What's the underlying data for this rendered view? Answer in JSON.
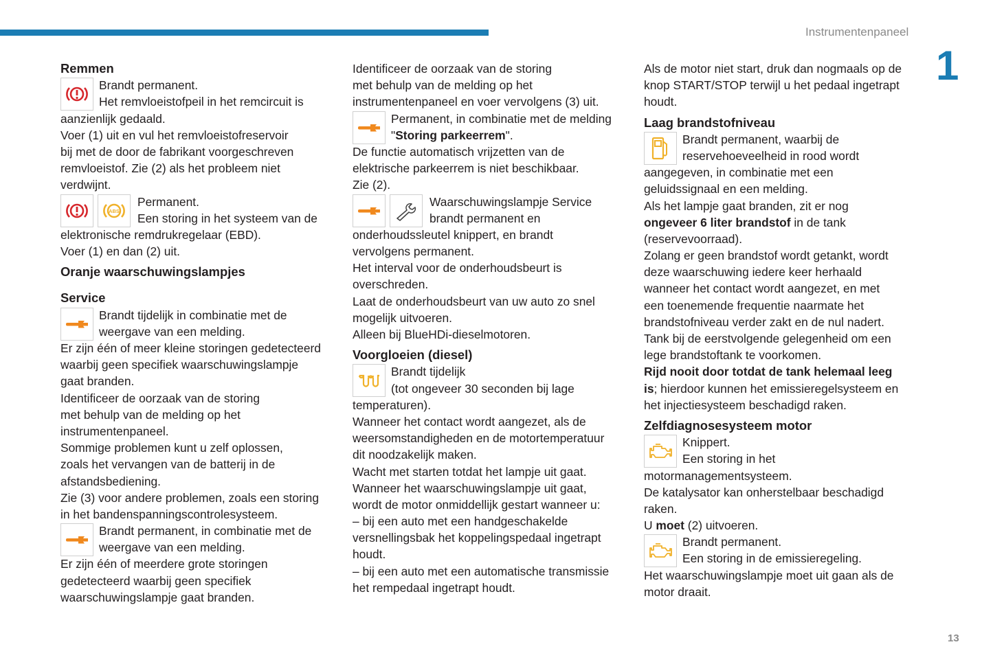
{
  "header": {
    "section": "Instrumentenpaneel",
    "chapter": "1",
    "page": "13",
    "accent": "#1b7db4"
  },
  "columns": [
    [
      {
        "type": "heading",
        "text": "Remmen"
      },
      {
        "type": "icon",
        "icons": [
          "brake-warning-icon"
        ],
        "lines": [
          "Brandt permanent.",
          "Het remvloeistofpeil in het remcircuit is",
          "aanzienlijk gedaald.",
          "Voer (1) uit en vul het remvloeistofreservoir",
          "bij met de door de fabrikant voorgeschreven",
          "remvloeistof. Zie (2) als het probleem niet",
          "verdwijnt."
        ]
      },
      {
        "type": "icon",
        "icons": [
          "brake-warning-icon",
          "abs-warning-icon"
        ],
        "lines": [
          "Permanent.",
          "Een storing in het systeem van de",
          "elektronische remdrukregelaar (EBD).",
          "Voer (1) en dan (2) uit."
        ]
      },
      {
        "type": "heading",
        "text": "Oranje waarschuwingslampjes"
      },
      {
        "type": "heading",
        "text": "Service",
        "extra": true
      },
      {
        "type": "icon",
        "icons": [
          "service-wrench-icon"
        ],
        "lines": [
          "Brandt tijdelijk in combinatie met de",
          "weergave van een melding.",
          "Er zijn één of meer kleine storingen gedetecteerd",
          "waarbij geen specifiek waarschuwingslampje",
          "gaat branden.",
          "Identificeer de oorzaak van de storing",
          "met behulp van de melding op het",
          "instrumentenpaneel.",
          "Sommige problemen kunt u zelf oplossen,",
          "zoals het vervangen van de batterij in de",
          "afstandsbediening.",
          "Zie (3) voor andere problemen, zoals een storing",
          "in het bandenspanningscontrolesysteem."
        ]
      },
      {
        "type": "icon",
        "icons": [
          "service-wrench-icon"
        ],
        "lines": [
          "Brandt permanent, in combinatie met de",
          "weergave van een melding.",
          "Er zijn één of meerdere grote storingen",
          "gedetecteerd waarbij geen specifiek",
          "waarschuwingslampje gaat branden."
        ]
      }
    ],
    [
      {
        "type": "text",
        "lines": [
          "Identificeer de oorzaak van de storing",
          "met behulp van de melding op het",
          "instrumentenpaneel en voer vervolgens (3) uit."
        ]
      },
      {
        "type": "icon",
        "icons": [
          "service-wrench-icon"
        ],
        "lines": [
          "Permanent, in combinatie met de melding",
          [
            {
              "t": "\""
            },
            {
              "t": "Storing parkeerrem",
              "b": true
            },
            {
              "t": "\"."
            }
          ],
          "De functie automatisch vrijzetten van de",
          "elektrische parkeerrem is niet beschikbaar.",
          "Zie (2)."
        ]
      },
      {
        "type": "icon",
        "icons": [
          "service-wrench-icon",
          "maintenance-spanner-icon"
        ],
        "lines": [
          "Waarschuwingslampje Service",
          "brandt permanent en",
          "onderhoudssleutel knippert, en brandt",
          "vervolgens permanent.",
          "Het interval voor de onderhoudsbeurt is",
          "overschreden.",
          "Laat de onderhoudsbeurt van uw auto zo snel",
          "mogelijk uitvoeren.",
          "Alleen bij BlueHDi-dieselmotoren."
        ]
      },
      {
        "type": "heading",
        "text": "Voorgloeien (diesel)"
      },
      {
        "type": "icon",
        "icons": [
          "preheating-coil-icon"
        ],
        "lines": [
          "Brandt tijdelijk",
          "(tot ongeveer 30 seconden bij lage",
          "temperaturen).",
          "Wanneer het contact wordt aangezet, als de",
          "weersomstandigheden en de motortemperatuur",
          "dit noodzakelijk maken.",
          "Wacht met starten totdat het lampje uit gaat.",
          "Wanneer het waarschuwingslampje uit gaat,",
          "wordt de motor onmiddellijk gestart wanneer u:",
          "–  bij een auto met een handgeschakelde",
          "versnellingsbak het koppelingspedaal ingetrapt",
          "houdt.",
          "–  bij een auto met een automatische transmissie",
          "het rempedaal ingetrapt houdt."
        ]
      }
    ],
    [
      {
        "type": "text",
        "lines": [
          "Als de motor niet start, druk dan nogmaals op de",
          "knop START/STOP terwijl u het pedaal ingetrapt",
          "houdt."
        ]
      },
      {
        "type": "heading",
        "text": "Laag brandstofniveau"
      },
      {
        "type": "icon",
        "icons": [
          "fuel-pump-icon"
        ],
        "lines": [
          "Brandt permanent, waarbij de",
          "reservehoeveelheid in rood wordt",
          "aangegeven, in combinatie met een",
          "geluidssignaal en een melding.",
          "Als het lampje gaat branden, zit er nog",
          [
            {
              "t": "ongeveer 6 liter brandstof",
              "b": true
            },
            {
              "t": " in de tank"
            }
          ],
          "(reservevoorraad).",
          "Zolang er geen brandstof wordt getankt, wordt",
          "deze waarschuwing iedere keer herhaald",
          "wanneer het contact wordt aangezet, en met",
          "een toenemende frequentie naarmate het",
          "brandstofniveau verder zakt en de nul nadert.",
          "Tank bij de eerstvolgende gelegenheid om een",
          "lege brandstoftank te voorkomen.",
          [
            {
              "t": "Rijd nooit door totdat de tank helemaal leeg",
              "b": true
            }
          ],
          [
            {
              "t": "is",
              "b": true
            },
            {
              "t": "; hierdoor kunnen het emissieregelsysteem en"
            }
          ],
          "het injectiesysteem beschadigd raken."
        ]
      },
      {
        "type": "heading",
        "text": "Zelfdiagnosesysteem motor"
      },
      {
        "type": "icon",
        "icons": [
          "engine-check-icon"
        ],
        "lines": [
          "Knippert.",
          "Een storing in het",
          "motormanagementsysteem.",
          "De katalysator kan onherstelbaar beschadigd",
          "raken.",
          [
            {
              "t": "U "
            },
            {
              "t": "moet",
              "b": true
            },
            {
              "t": " (2) uitvoeren."
            }
          ]
        ]
      },
      {
        "type": "icon",
        "icons": [
          "engine-check-icon"
        ],
        "lines": [
          "Brandt permanent.",
          "Een storing in de emissieregeling.",
          "Het waarschuwingslampje moet uit gaan als de",
          "motor draait."
        ]
      }
    ]
  ]
}
